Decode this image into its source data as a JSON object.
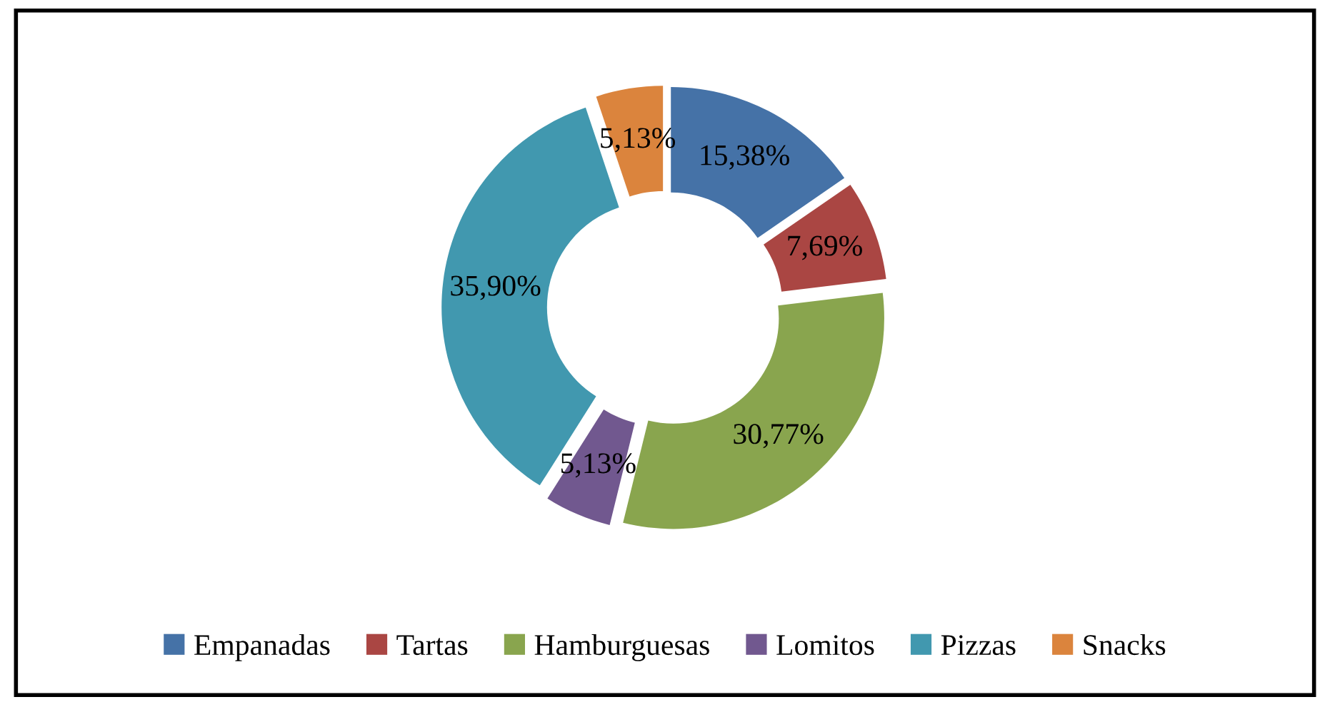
{
  "chart_data": {
    "type": "donut",
    "categories": [
      "Empanadas",
      "Tartas",
      "Hamburguesas",
      "Lomitos",
      "Pizzas",
      "Snacks"
    ],
    "values": [
      15.38,
      7.69,
      30.77,
      5.13,
      35.9,
      5.13
    ],
    "value_labels": [
      "15,38%",
      "7,69%",
      "30,77%",
      "5,13%",
      "35,90%",
      "5,13%"
    ],
    "colors": [
      "#4572a7",
      "#aa4643",
      "#89a54e",
      "#71588f",
      "#4198af",
      "#db843d"
    ],
    "legend": "bottom"
  }
}
